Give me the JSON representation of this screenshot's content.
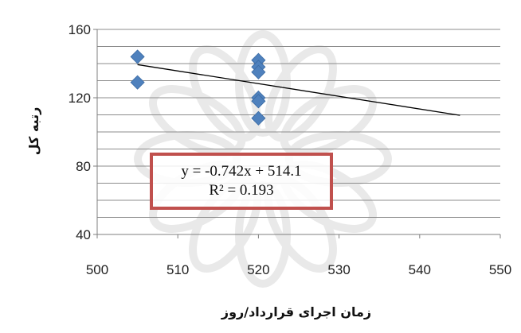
{
  "chart_data": {
    "type": "scatter",
    "xlabel": "زمان اجرای قرارداد/روز",
    "ylabel": "رتبه کل",
    "xlim": [
      500,
      550
    ],
    "ylim": [
      40,
      160
    ],
    "x_ticks": [
      "500",
      "510",
      "520",
      "530",
      "540",
      "550"
    ],
    "y_ticks": [
      "40",
      "80",
      "120",
      "160"
    ],
    "grid": "horizontal",
    "points": [
      {
        "x": 505,
        "y": 144
      },
      {
        "x": 505,
        "y": 129
      },
      {
        "x": 520,
        "y": 142
      },
      {
        "x": 520,
        "y": 138
      },
      {
        "x": 520,
        "y": 135
      },
      {
        "x": 520,
        "y": 120
      },
      {
        "x": 520,
        "y": 118
      },
      {
        "x": 520,
        "y": 108
      }
    ],
    "trendline": {
      "slope": -0.742,
      "intercept": 514.1,
      "x_from": 505,
      "x_to": 545
    },
    "equation": "y = -0.742x + 514.1",
    "r_squared": "R² = 0.193",
    "marker_color": "#4f81bd",
    "trend_color": "#000000",
    "box_color": "#c0504d"
  }
}
